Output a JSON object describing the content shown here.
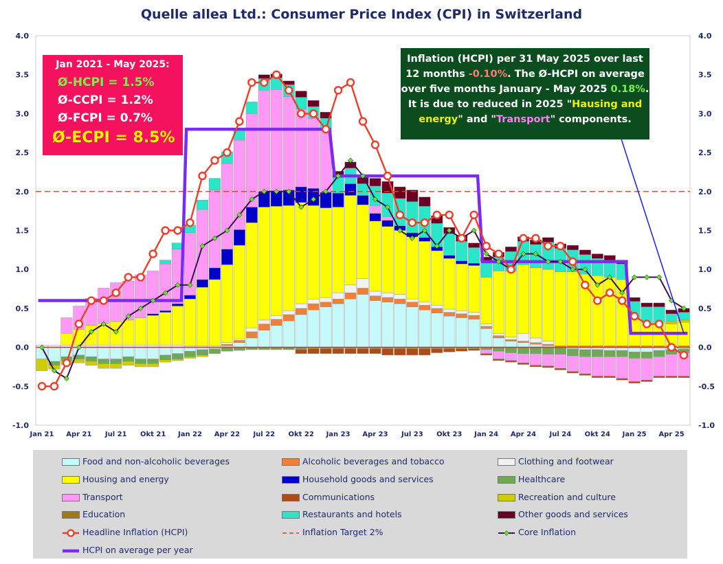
{
  "title": "Quelle allea Ltd.: Consumer Price Index (CPI) in Switzerland",
  "note_left": {
    "line1": "Jan 2021 - May 2025:",
    "line2": "Ø-HCPI  = 1.5%",
    "line3": "Ø-CCPI  = 1.2%",
    "line4": "Ø-FCPI  = 0.7%",
    "line5": "Ø-ECPI  = 8.5%"
  },
  "note_right": {
    "t1": "Inflation (HCPI) per 31 May 2025 over last",
    "t2": "12 months",
    "v1": "-0.10%",
    "t3": ".   The Ø-HCPI on average",
    "t4": "over five months January - May 2025",
    "v2": "0.18%",
    "t5": ".",
    "t6": "It is due to reduced in 2025  \"",
    "h1": "Hausing and",
    "h2": "energy",
    "t7": "\" and \"",
    "h3": "Transport",
    "t8": "\" components."
  },
  "colors": {
    "Food and non-alcoholic beverages": "#c6fafa",
    "Alcoholic beverages and tobacco": "#f07f37",
    "Clothing and footwear": "#f2f2f2",
    "Housing and energy": "#ffff00",
    "Household goods and services": "#0000c8",
    "Healthcare": "#6eaa55",
    "Transport": "#ff99f5",
    "Communications": "#b04b14",
    "Recreation and culture": "#cfcc00",
    "Education": "#a27a12",
    "Restaurants and hotels": "#2ae6c8",
    "Other goods and services": "#6a0025",
    "hcpi_line": "#f03c28",
    "core_line": "#3c0e50",
    "target_line": "#e03c2c",
    "avg_line": "#7a2cf0"
  },
  "chart_data": {
    "type": "bar",
    "stacked": true,
    "ylim": [
      -1.0,
      4.0
    ],
    "yticks": [
      "4.0",
      "3.5",
      "3.0",
      "2.5",
      "2.0",
      "1.5",
      "1.0",
      "0.5",
      "0.0",
      "-0.5",
      "-1.0"
    ],
    "x_tick_labels": [
      "Jan 21",
      "Apr 21",
      "Jul 21",
      "Okt 21",
      "Jan 22",
      "Apr 22",
      "Jul 22",
      "Okt 22",
      "Jan 23",
      "Apr 23",
      "Jul 23",
      "Okt 23",
      "Jan 24",
      "Apr 24",
      "Jul 24",
      "Okt 24",
      "Jan 25",
      "Apr 25"
    ],
    "months": [
      "2021-01",
      "2021-02",
      "2021-03",
      "2021-04",
      "2021-05",
      "2021-06",
      "2021-07",
      "2021-08",
      "2021-09",
      "2021-10",
      "2021-11",
      "2021-12",
      "2022-01",
      "2022-02",
      "2022-03",
      "2022-04",
      "2022-05",
      "2022-06",
      "2022-07",
      "2022-08",
      "2022-09",
      "2022-10",
      "2022-11",
      "2022-12",
      "2023-01",
      "2023-02",
      "2023-03",
      "2023-04",
      "2023-05",
      "2023-06",
      "2023-07",
      "2023-08",
      "2023-09",
      "2023-10",
      "2023-11",
      "2023-12",
      "2024-01",
      "2024-02",
      "2024-03",
      "2024-04",
      "2024-05",
      "2024-06",
      "2024-07",
      "2024-08",
      "2024-09",
      "2024-10",
      "2024-11",
      "2024-12",
      "2025-01",
      "2025-02",
      "2025-03",
      "2025-04",
      "2025-05"
    ],
    "series": [
      {
        "name": "Food and non-alcoholic beverages",
        "values": [
          -0.15,
          -0.18,
          -0.12,
          -0.1,
          -0.12,
          -0.15,
          -0.15,
          -0.12,
          -0.15,
          -0.15,
          -0.1,
          -0.08,
          -0.05,
          -0.03,
          -0.02,
          0.02,
          0.06,
          0.12,
          0.22,
          0.28,
          0.34,
          0.42,
          0.48,
          0.52,
          0.56,
          0.62,
          0.68,
          0.6,
          0.58,
          0.56,
          0.52,
          0.48,
          0.44,
          0.4,
          0.38,
          0.36,
          0.24,
          0.12,
          0.08,
          0.06,
          0.04,
          0.02,
          0.0,
          -0.02,
          -0.03,
          -0.03,
          -0.04,
          -0.04,
          -0.06,
          -0.06,
          -0.04,
          -0.03,
          -0.02
        ]
      },
      {
        "name": "Alcoholic beverages and tobacco",
        "values": [
          0.0,
          0.0,
          0.0,
          0.0,
          0.0,
          0.0,
          0.0,
          0.0,
          0.0,
          0.0,
          0.0,
          0.0,
          0.0,
          0.0,
          0.0,
          0.02,
          0.03,
          0.08,
          0.08,
          0.08,
          0.08,
          0.08,
          0.08,
          0.06,
          0.06,
          0.08,
          0.08,
          0.06,
          0.06,
          0.06,
          0.06,
          0.06,
          0.06,
          0.05,
          0.05,
          0.05,
          0.03,
          0.03,
          0.02,
          0.02,
          0.02,
          0.02,
          0.02,
          0.02,
          0.02,
          0.02,
          0.02,
          0.02,
          0.02,
          0.02,
          0.02,
          0.02,
          0.02
        ]
      },
      {
        "name": "Clothing and footwear",
        "values": [
          0.03,
          0.03,
          0.03,
          0.03,
          0.03,
          0.03,
          0.03,
          0.03,
          0.03,
          0.03,
          0.03,
          0.03,
          0.02,
          0.02,
          0.02,
          0.02,
          0.02,
          0.05,
          0.05,
          0.05,
          0.05,
          0.06,
          0.06,
          0.06,
          0.08,
          0.1,
          0.12,
          0.06,
          0.06,
          0.06,
          0.04,
          0.04,
          0.04,
          0.04,
          0.04,
          0.04,
          0.03,
          0.03,
          0.03,
          0.1,
          0.06,
          0.04,
          0.0,
          0.0,
          0.0,
          0.0,
          0.0,
          0.0,
          0.0,
          0.0,
          0.0,
          0.0,
          0.0
        ]
      },
      {
        "name": "Housing and energy",
        "values": [
          0.0,
          0.0,
          0.15,
          0.2,
          0.25,
          0.28,
          0.3,
          0.32,
          0.35,
          0.38,
          0.42,
          0.5,
          0.6,
          0.75,
          0.85,
          1.0,
          1.2,
          1.35,
          1.45,
          1.4,
          1.35,
          1.3,
          1.2,
          1.15,
          1.1,
          1.15,
          0.95,
          0.9,
          0.85,
          0.82,
          0.8,
          0.78,
          0.7,
          0.65,
          0.6,
          0.6,
          0.6,
          0.8,
          0.85,
          0.88,
          0.9,
          0.92,
          0.95,
          0.95,
          0.92,
          0.9,
          0.88,
          0.85,
          0.35,
          0.3,
          0.3,
          0.28,
          0.3
        ]
      },
      {
        "name": "Household goods and services",
        "values": [
          0.0,
          0.0,
          0.0,
          0.0,
          0.0,
          0.0,
          0.0,
          0.0,
          0.0,
          0.02,
          0.02,
          0.03,
          0.05,
          0.1,
          0.15,
          0.2,
          0.2,
          0.2,
          0.2,
          0.2,
          0.2,
          0.2,
          0.22,
          0.2,
          0.18,
          0.15,
          0.12,
          0.1,
          0.08,
          0.06,
          0.05,
          0.05,
          0.05,
          0.04,
          0.04,
          0.03,
          0.0,
          0.0,
          0.0,
          0.0,
          0.0,
          0.0,
          0.0,
          0.0,
          0.0,
          0.0,
          0.0,
          0.0,
          0.0,
          0.0,
          0.0,
          0.0,
          0.0
        ]
      },
      {
        "name": "Healthcare",
        "values": [
          0.0,
          -0.05,
          -0.05,
          -0.05,
          -0.06,
          -0.06,
          -0.06,
          -0.06,
          -0.06,
          -0.06,
          -0.06,
          -0.07,
          -0.07,
          -0.07,
          -0.06,
          -0.05,
          -0.04,
          -0.03,
          -0.03,
          -0.03,
          -0.03,
          -0.03,
          -0.02,
          -0.02,
          -0.02,
          -0.02,
          -0.02,
          -0.02,
          -0.02,
          -0.02,
          -0.02,
          -0.02,
          -0.02,
          -0.02,
          -0.02,
          -0.02,
          -0.03,
          -0.05,
          -0.07,
          -0.08,
          -0.08,
          -0.09,
          -0.09,
          -0.09,
          -0.09,
          -0.09,
          -0.08,
          -0.08,
          -0.08,
          -0.08,
          -0.08,
          -0.06,
          -0.05
        ]
      },
      {
        "name": "Transport",
        "values": [
          0.0,
          0.0,
          0.2,
          0.3,
          0.35,
          0.45,
          0.5,
          0.5,
          0.55,
          0.55,
          0.6,
          0.7,
          0.8,
          0.9,
          1.0,
          1.1,
          1.15,
          1.2,
          1.3,
          1.3,
          1.2,
          1.0,
          0.9,
          0.8,
          0.0,
          0.0,
          0.0,
          0.1,
          0.05,
          0.0,
          0.0,
          0.0,
          0.0,
          0.0,
          0.0,
          0.0,
          -0.05,
          -0.1,
          -0.1,
          -0.12,
          -0.15,
          -0.15,
          -0.18,
          -0.2,
          -0.22,
          -0.25,
          -0.25,
          -0.28,
          -0.3,
          -0.28,
          -0.25,
          -0.28,
          -0.3
        ]
      },
      {
        "name": "Communications",
        "values": [
          0.0,
          0.0,
          0.0,
          0.0,
          0.0,
          0.0,
          0.0,
          0.0,
          0.0,
          0.0,
          0.0,
          0.0,
          0.0,
          0.0,
          0.0,
          0.0,
          0.0,
          0.0,
          0.0,
          0.0,
          0.0,
          -0.05,
          -0.06,
          -0.06,
          -0.06,
          -0.06,
          -0.06,
          -0.06,
          -0.08,
          -0.08,
          -0.08,
          -0.08,
          -0.05,
          -0.04,
          -0.03,
          -0.02,
          -0.02,
          -0.02,
          -0.02,
          -0.02,
          -0.02,
          -0.02,
          -0.02,
          -0.02,
          -0.02,
          -0.02,
          -0.02,
          -0.02,
          -0.02,
          -0.02,
          -0.02,
          -0.02,
          -0.02
        ]
      },
      {
        "name": "Recreation and culture",
        "values": [
          -0.15,
          -0.05,
          -0.05,
          -0.05,
          -0.05,
          -0.06,
          -0.06,
          -0.05,
          -0.04,
          -0.04,
          -0.03,
          -0.02,
          -0.02,
          -0.02,
          0.0,
          0.0,
          0.0,
          0.0,
          0.0,
          0.0,
          0.0,
          0.0,
          0.0,
          0.0,
          0.0,
          0.0,
          0.0,
          0.0,
          0.0,
          0.0,
          0.0,
          0.0,
          0.0,
          0.0,
          0.0,
          0.0,
          0.0,
          0.0,
          0.0,
          0.0,
          0.0,
          0.0,
          0.0,
          0.0,
          0.0,
          0.0,
          0.0,
          0.0,
          0.0,
          0.0,
          0.0,
          0.03,
          0.03
        ]
      },
      {
        "name": "Education",
        "values": [
          0.0,
          0.0,
          0.0,
          0.0,
          0.0,
          0.0,
          0.0,
          0.0,
          0.0,
          0.0,
          0.0,
          0.0,
          0.0,
          0.0,
          0.0,
          0.0,
          0.0,
          0.0,
          0.0,
          0.0,
          0.0,
          0.0,
          0.0,
          0.0,
          0.0,
          0.0,
          0.0,
          0.0,
          0.0,
          0.0,
          0.0,
          0.0,
          0.0,
          0.0,
          0.0,
          0.0,
          0.0,
          0.0,
          0.0,
          0.0,
          0.0,
          0.0,
          0.0,
          0.0,
          0.0,
          0.0,
          0.0,
          0.0,
          0.0,
          0.0,
          0.0,
          0.0,
          0.0
        ]
      },
      {
        "name": "Restaurants and hotels",
        "values": [
          0.0,
          0.0,
          0.0,
          0.0,
          0.0,
          0.0,
          0.0,
          0.0,
          0.0,
          0.0,
          0.05,
          0.08,
          0.1,
          0.12,
          0.15,
          0.15,
          0.15,
          0.15,
          0.15,
          0.15,
          0.15,
          0.15,
          0.15,
          0.15,
          0.2,
          0.2,
          0.15,
          0.25,
          0.3,
          0.35,
          0.4,
          0.4,
          0.3,
          0.28,
          0.25,
          0.2,
          0.2,
          0.18,
          0.25,
          0.3,
          0.3,
          0.35,
          0.3,
          0.28,
          0.25,
          0.22,
          0.22,
          0.2,
          0.22,
          0.2,
          0.2,
          0.1,
          0.1
        ]
      },
      {
        "name": "Other goods and services",
        "values": [
          0.0,
          0.0,
          0.0,
          0.0,
          0.0,
          0.0,
          0.0,
          0.0,
          0.0,
          0.0,
          0.0,
          0.0,
          0.0,
          0.0,
          0.0,
          0.0,
          0.0,
          0.0,
          0.05,
          0.05,
          0.05,
          0.08,
          0.08,
          0.08,
          0.08,
          0.08,
          0.08,
          0.1,
          0.15,
          0.15,
          0.15,
          0.12,
          0.1,
          0.08,
          0.08,
          0.06,
          0.06,
          0.06,
          0.06,
          0.06,
          0.06,
          0.06,
          0.06,
          0.06,
          0.06,
          0.06,
          0.06,
          0.05,
          0.05,
          0.05,
          0.05,
          0.05,
          0.05
        ]
      }
    ],
    "hcpi": [
      -0.5,
      -0.5,
      -0.2,
      0.3,
      0.6,
      0.6,
      0.7,
      0.9,
      0.9,
      1.2,
      1.5,
      1.5,
      1.6,
      2.2,
      2.4,
      2.5,
      2.9,
      3.4,
      3.4,
      3.5,
      3.3,
      3.0,
      3.0,
      2.8,
      3.3,
      3.4,
      2.9,
      2.6,
      2.2,
      1.7,
      1.6,
      1.6,
      1.7,
      1.7,
      1.4,
      1.7,
      1.3,
      1.2,
      1.0,
      1.4,
      1.4,
      1.3,
      1.3,
      1.1,
      0.8,
      0.6,
      0.7,
      0.6,
      0.4,
      0.3,
      0.3,
      0.0,
      -0.1
    ],
    "core": [
      0.0,
      -0.3,
      -0.4,
      0.0,
      0.2,
      0.3,
      0.2,
      0.4,
      0.5,
      0.6,
      0.7,
      0.8,
      0.8,
      1.3,
      1.4,
      1.5,
      1.7,
      1.9,
      2.0,
      2.0,
      2.0,
      1.8,
      1.9,
      2.0,
      2.2,
      2.4,
      2.2,
      1.9,
      1.8,
      1.5,
      1.4,
      1.5,
      1.3,
      1.5,
      1.4,
      1.5,
      1.2,
      1.1,
      1.0,
      1.2,
      1.2,
      1.1,
      1.1,
      1.0,
      1.0,
      0.8,
      0.9,
      0.7,
      0.9,
      0.9,
      0.9,
      0.6,
      0.5
    ],
    "target": 2.0,
    "avg_per_year": [
      {
        "year": 2021,
        "value": 0.6
      },
      {
        "year": 2022,
        "value": 2.8
      },
      {
        "year": 2023,
        "value": 2.2
      },
      {
        "year": 2024,
        "value": 1.1
      },
      {
        "year": 2025,
        "value": 0.18
      }
    ],
    "legend_placement": "bottom"
  },
  "legend": [
    {
      "label": "Food and non-alcoholic beverages",
      "kind": "bar"
    },
    {
      "label": "Alcoholic beverages and tobacco",
      "kind": "bar"
    },
    {
      "label": "Clothing and footwear",
      "kind": "bar"
    },
    {
      "label": "Housing and energy",
      "kind": "bar"
    },
    {
      "label": "Household goods and services",
      "kind": "bar"
    },
    {
      "label": "Healthcare",
      "kind": "bar"
    },
    {
      "label": "Transport",
      "kind": "bar"
    },
    {
      "label": "Communications",
      "kind": "bar"
    },
    {
      "label": "Recreation and culture",
      "kind": "bar"
    },
    {
      "label": "Education",
      "kind": "bar"
    },
    {
      "label": "Restaurants and hotels",
      "kind": "bar"
    },
    {
      "label": "Other goods and services",
      "kind": "bar"
    },
    {
      "label": "Headline Inflation (HCPI)",
      "kind": "hcpi"
    },
    {
      "label": "Inflation Target 2%",
      "kind": "target"
    },
    {
      "label": "Core Inflation",
      "kind": "core"
    },
    {
      "label": "HCPI on average per year",
      "kind": "avg"
    }
  ]
}
